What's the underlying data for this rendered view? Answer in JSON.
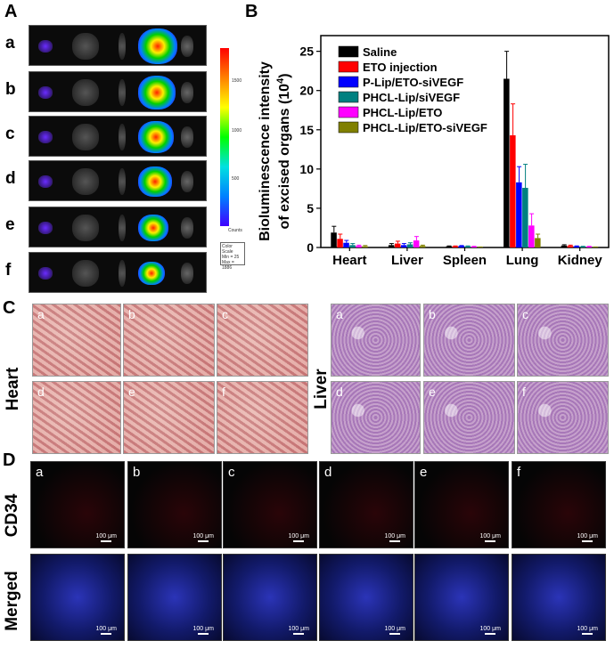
{
  "panels": {
    "A": "A",
    "B": "B",
    "C": "C",
    "D": "D"
  },
  "panelA": {
    "rows": [
      "a",
      "b",
      "c",
      "d",
      "e",
      "f"
    ],
    "colorbar": {
      "ticks": [
        "1500",
        "1000",
        "500"
      ],
      "units": "Counts",
      "scale_box": [
        "Color Scale",
        "Min = 25",
        "Max = 1886"
      ]
    }
  },
  "panelC": {
    "heart_label": "Heart",
    "liver_label": "Liver",
    "tiles": [
      "a",
      "b",
      "c",
      "d",
      "e",
      "f"
    ]
  },
  "panelD": {
    "row_labels": [
      "CD34",
      "Merged"
    ],
    "tiles": [
      "a",
      "b",
      "c",
      "d",
      "e",
      "f"
    ],
    "scale_bar": "100 μm"
  },
  "chart_data": {
    "type": "bar",
    "ylabel_line1": "Bioluminescence intensity",
    "ylabel_line2": "of excised organs (10",
    "ylabel_exp": "4",
    "ylabel_close": ")",
    "ylim": [
      0,
      27
    ],
    "yticks": [
      "0",
      "5",
      "10",
      "15",
      "20",
      "25"
    ],
    "categories": [
      "Heart",
      "Liver",
      "Spleen",
      "Lung",
      "Kidney"
    ],
    "legend_position": "top-right",
    "series": [
      {
        "name": "Saline",
        "color": "#000000",
        "values": [
          1.9,
          0.3,
          0.15,
          21.5,
          0.25
        ],
        "errors": [
          0.8,
          0.2,
          0.05,
          3.5,
          0.1
        ]
      },
      {
        "name": "ETO injection",
        "color": "#ff0000",
        "values": [
          1.1,
          0.5,
          0.15,
          14.3,
          0.2
        ],
        "errors": [
          0.6,
          0.3,
          0.05,
          4.0,
          0.1
        ]
      },
      {
        "name": "P-Lip/ETO-siVEGF",
        "color": "#0000ff",
        "values": [
          0.6,
          0.3,
          0.2,
          8.3,
          0.15
        ],
        "errors": [
          0.3,
          0.2,
          0.05,
          2.0,
          0.05
        ]
      },
      {
        "name": "PHCL-Lip/siVEGF",
        "color": "#008080",
        "values": [
          0.3,
          0.4,
          0.15,
          7.6,
          0.1
        ],
        "errors": [
          0.2,
          0.2,
          0.05,
          3.0,
          0.05
        ]
      },
      {
        "name": "PHCL-Lip/ETO",
        "color": "#ff00ff",
        "values": [
          0.2,
          0.9,
          0.1,
          2.8,
          0.1
        ],
        "errors": [
          0.1,
          0.5,
          0.05,
          1.5,
          0.05
        ]
      },
      {
        "name": "PHCL-Lip/ETO-siVEGF",
        "color": "#808000",
        "values": [
          0.15,
          0.2,
          0.05,
          1.2,
          0.05
        ],
        "errors": [
          0.1,
          0.1,
          0.02,
          0.5,
          0.02
        ]
      }
    ]
  }
}
